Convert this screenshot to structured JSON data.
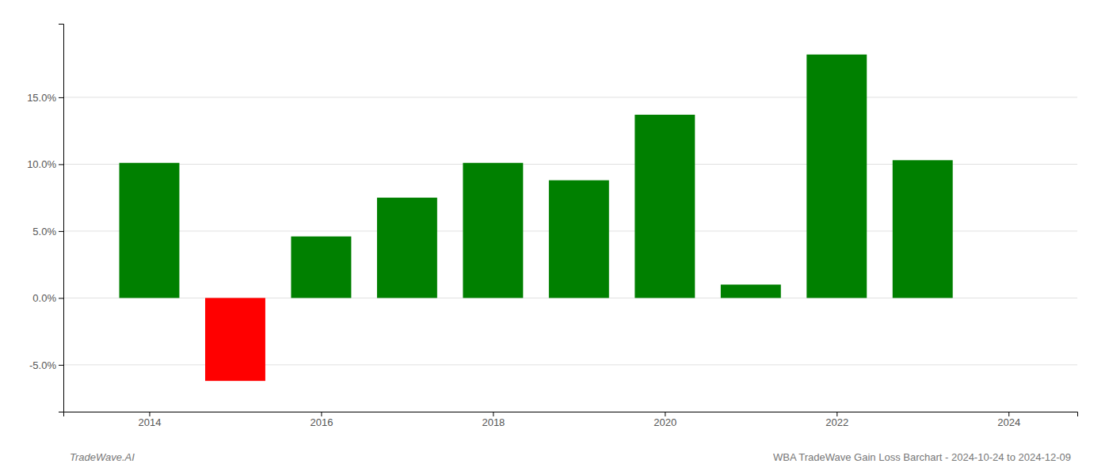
{
  "chart_data": {
    "type": "bar",
    "title": "WBA TradeWave Gain Loss Barchart - 2024-10-24 to 2024-12-09",
    "annotations": [
      "TradeWave.AI"
    ],
    "x": [
      2014,
      2015,
      2016,
      2017,
      2018,
      2019,
      2020,
      2021,
      2022,
      2023
    ],
    "values": [
      0.101,
      -0.062,
      0.046,
      0.075,
      0.101,
      0.088,
      0.137,
      0.01,
      0.182,
      0.103
    ],
    "colors": [
      "#008000",
      "#ff0000",
      "#008000",
      "#008000",
      "#008000",
      "#008000",
      "#008000",
      "#008000",
      "#008000",
      "#008000"
    ],
    "xlim": [
      2013.0,
      2024.8
    ],
    "xticks": [
      2014,
      2016,
      2018,
      2020,
      2022,
      2024
    ],
    "ylim": [
      -0.085,
      0.205
    ],
    "yticks": [
      {
        "value": -0.05,
        "label": "-5.0%"
      },
      {
        "value": 0.0,
        "label": "0.0%"
      },
      {
        "value": 0.05,
        "label": "5.0%"
      },
      {
        "value": 0.1,
        "label": "10.0%"
      },
      {
        "value": 0.15,
        "label": "15.0%"
      }
    ],
    "grid": true
  }
}
